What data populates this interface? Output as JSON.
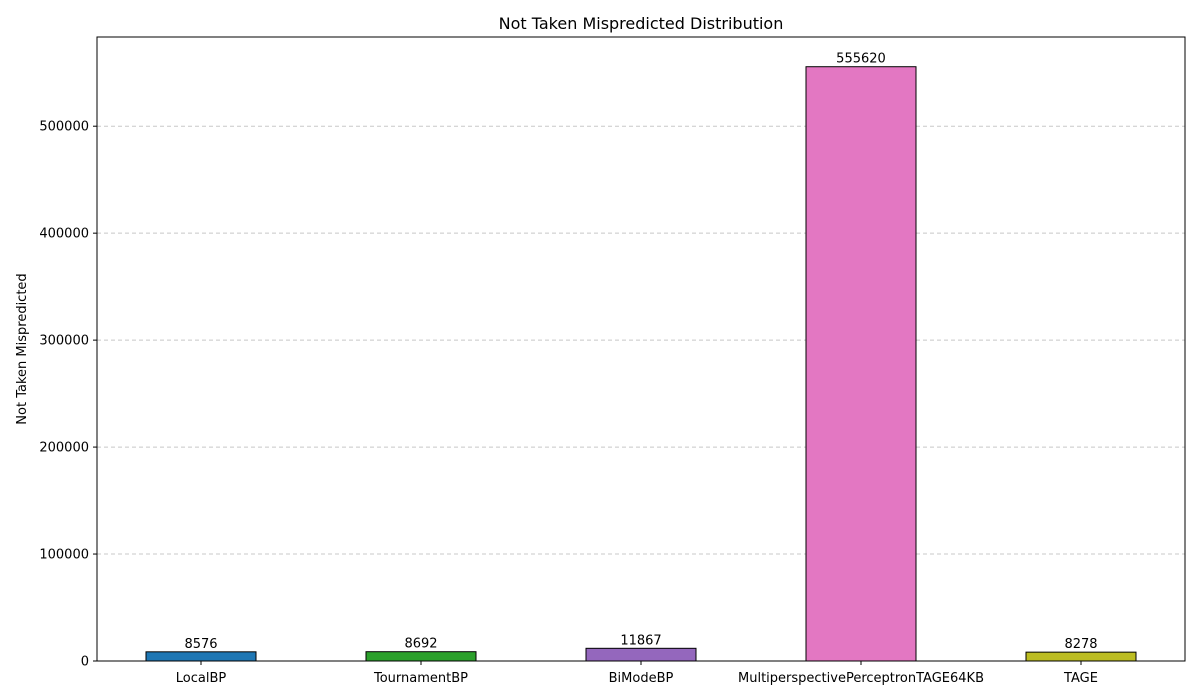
{
  "chart_data": {
    "type": "bar",
    "title": "Not Taken Mispredicted Distribution",
    "xlabel": "",
    "ylabel": "Not Taken Mispredicted",
    "categories": [
      "LocalBP",
      "TournamentBP",
      "BiModeBP",
      "MultiperspectivePerceptronTAGE64KB",
      "TAGE"
    ],
    "values": [
      8576,
      8692,
      11867,
      555620,
      8278
    ],
    "colors": [
      "#1f77b4",
      "#2ca02c",
      "#9467bd",
      "#e377c2",
      "#bcbd22"
    ],
    "data_labels": [
      "8576",
      "8692",
      "11867",
      "555620",
      "8278"
    ],
    "ylim": [
      0,
      583401
    ],
    "yticks": [
      0,
      100000,
      200000,
      300000,
      400000,
      500000
    ],
    "ytick_labels": [
      "0",
      "100000",
      "200000",
      "300000",
      "400000",
      "500000"
    ],
    "grid": "y-dashed",
    "legend": "none"
  }
}
